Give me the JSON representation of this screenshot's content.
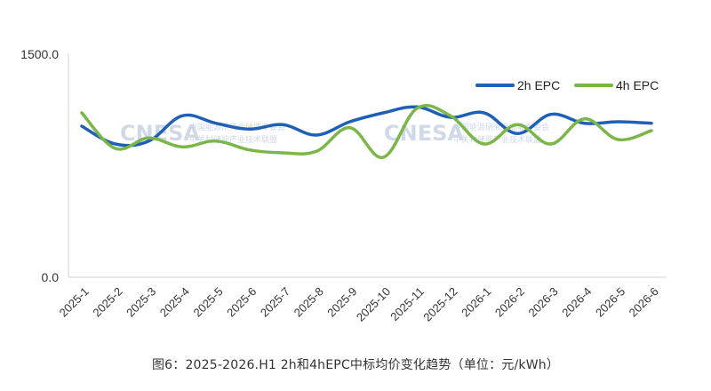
{
  "chart_data": {
    "type": "line",
    "categories": [
      "2025-1",
      "2025-2",
      "2025-3",
      "2025-4",
      "2025-5",
      "2025-6",
      "2025-7",
      "2025-8",
      "2025-9",
      "2025-10",
      "2025-11",
      "2025-12",
      "2026-1",
      "2026-2",
      "2026-3",
      "2026-4",
      "2026-5",
      "2026-6"
    ],
    "series": [
      {
        "name": "2h EPC",
        "color": "#1f5fb5",
        "values": [
          1020,
          900,
          920,
          1090,
          1040,
          1000,
          1030,
          960,
          1050,
          1110,
          1150,
          1080,
          1110,
          970,
          1100,
          1040,
          1050,
          1040
        ]
      },
      {
        "name": "4h EPC",
        "color": "#7ab648",
        "values": [
          1110,
          870,
          940,
          880,
          920,
          860,
          840,
          850,
          1010,
          810,
          1140,
          1090,
          900,
          1030,
          900,
          1070,
          930,
          990
        ]
      }
    ],
    "y_tick_labels": [
      "0.0",
      "1500.0"
    ],
    "ylim": [
      0,
      1500
    ],
    "legend_position": "top-right",
    "grid": false
  },
  "watermark": {
    "text": "CNESA",
    "sub_text_1": "中国能源研究会储能专委会",
    "sub_text_2": "中关村储能产业技术联盟"
  },
  "caption": "图6：2025-2026.H1 2h和4hEPC中标均价变化趋势（单位：元/kWh）"
}
